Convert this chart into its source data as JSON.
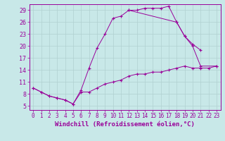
{
  "xlabel": "Windchill (Refroidissement éolien,°C)",
  "bg_color": "#c8e8e8",
  "line_color": "#990099",
  "grid_color": "#b0d0d0",
  "xlim": [
    -0.5,
    23.5
  ],
  "ylim": [
    4,
    30.5
  ],
  "xticks": [
    0,
    1,
    2,
    3,
    4,
    5,
    6,
    7,
    8,
    9,
    10,
    11,
    12,
    13,
    14,
    15,
    16,
    17,
    18,
    19,
    20,
    21,
    22,
    23
  ],
  "yticks": [
    5,
    8,
    11,
    14,
    17,
    20,
    23,
    26,
    29
  ],
  "line1_x": [
    0,
    1,
    2,
    3,
    4,
    5,
    6,
    7,
    8,
    9,
    10,
    11,
    12,
    13,
    14,
    15,
    16,
    17,
    18,
    19,
    20,
    21
  ],
  "line1_y": [
    9.5,
    8.5,
    7.5,
    7.0,
    6.5,
    5.5,
    9.0,
    14.5,
    19.5,
    23.0,
    27.0,
    27.5,
    29.0,
    29.0,
    29.5,
    29.5,
    29.5,
    30.0,
    26.0,
    22.5,
    20.5,
    19.0
  ],
  "line2_x": [
    0,
    1,
    2,
    3,
    4,
    5,
    6,
    7,
    8,
    9,
    10,
    11,
    12,
    13,
    14,
    15,
    16,
    17,
    18,
    19,
    20,
    21,
    22,
    23
  ],
  "line2_y": [
    9.5,
    8.5,
    7.5,
    7.0,
    6.5,
    5.5,
    8.5,
    8.5,
    9.5,
    10.5,
    11.0,
    11.5,
    12.5,
    13.0,
    13.0,
    13.5,
    13.5,
    14.0,
    14.5,
    15.0,
    14.5,
    14.5,
    14.5,
    15.0
  ],
  "line3_x": [
    12,
    18,
    19,
    20,
    21,
    23
  ],
  "line3_y": [
    29.0,
    26.0,
    22.5,
    20.0,
    15.0,
    15.0
  ],
  "xlabel_fontsize": 6.5,
  "tick_fontsize_x": 5.5,
  "tick_fontsize_y": 6.0
}
